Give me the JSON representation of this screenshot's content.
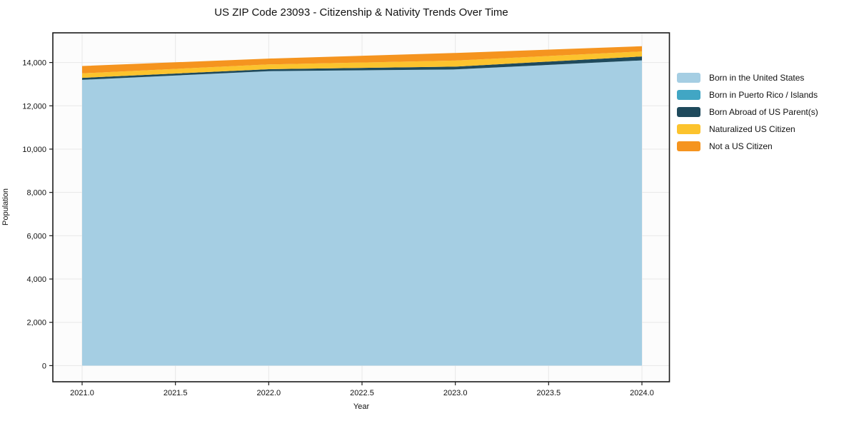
{
  "chart_data": {
    "type": "area",
    "stacked": true,
    "title": "US ZIP Code 23093 - Citizenship & Nativity Trends Over Time",
    "xlabel": "Year",
    "ylabel": "Population",
    "x": [
      2021,
      2022,
      2023,
      2024
    ],
    "series": [
      {
        "name": "Born in the United States",
        "color": "#a5cee3",
        "values": [
          13200,
          13600,
          13680,
          14100
        ]
      },
      {
        "name": "Born in Puerto Rico / Islands",
        "color": "#41a6c4",
        "values": [
          0,
          0,
          0,
          0
        ]
      },
      {
        "name": "Born Abroad of US Parent(s)",
        "color": "#1f4a5c",
        "values": [
          90,
          90,
          130,
          180
        ]
      },
      {
        "name": "Naturalized US Citizen",
        "color": "#fcc32d",
        "values": [
          210,
          220,
          280,
          230
        ]
      },
      {
        "name": "Not a US Citizen",
        "color": "#f5941f",
        "values": [
          340,
          270,
          350,
          240
        ]
      }
    ],
    "x_ticks": [
      2021.0,
      2021.5,
      2022.0,
      2022.5,
      2023.0,
      2023.5,
      2024.0
    ],
    "y_ticks": [
      0,
      2000,
      4000,
      6000,
      8000,
      10000,
      12000,
      14000
    ],
    "xlim": [
      2020.85,
      2024.15
    ],
    "ylim": [
      -745,
      15370
    ],
    "grid": true,
    "legend_position": "right",
    "colors": {
      "spine": "#1a1a1a",
      "grid": "#e8e8e8",
      "plot_background": "#fcfcfc",
      "text": "#111111"
    }
  }
}
